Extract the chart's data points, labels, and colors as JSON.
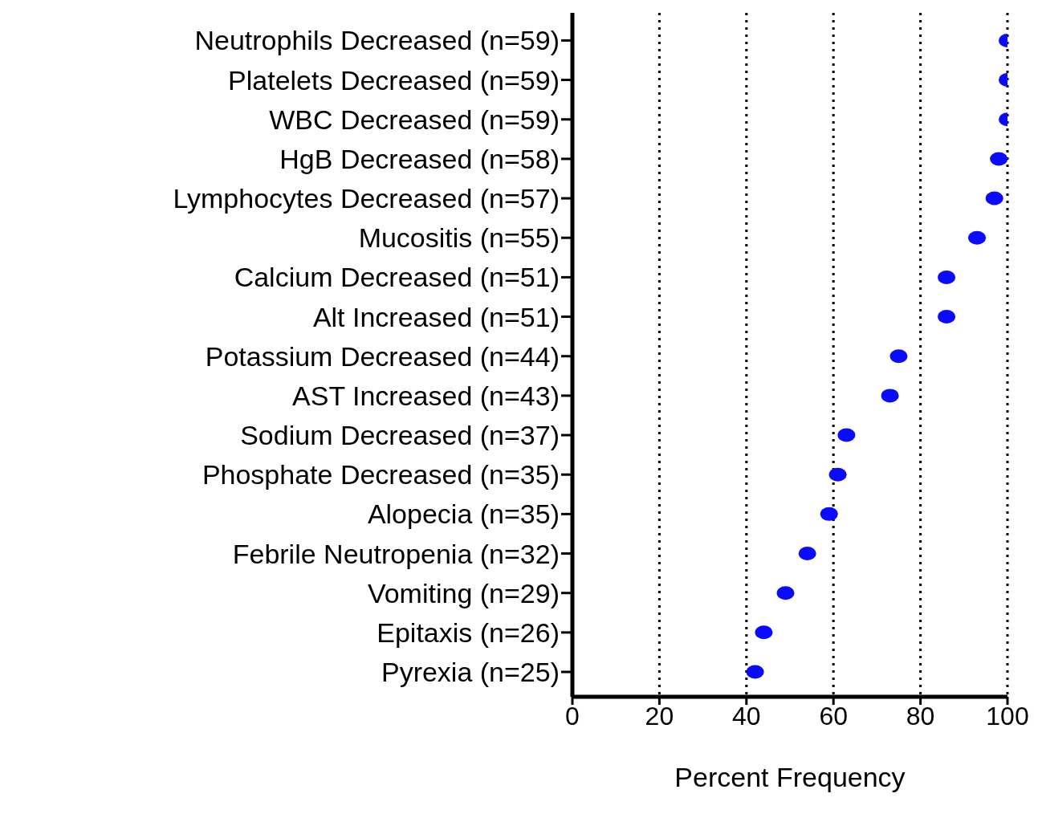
{
  "chart_data": {
    "type": "scatter",
    "orientation": "horizontal",
    "xlabel": "Percent Frequency",
    "categories": [
      "Neutrophils Decreased (n=59)",
      "Platelets Decreased (n=59)",
      "WBC Decreased (n=59)",
      "HgB Decreased (n=58)",
      "Lymphocytes Decreased (n=57)",
      "Mucositis (n=55)",
      "Calcium Decreased (n=51)",
      "Alt Increased (n=51)",
      "Potassium Decreased (n=44)",
      "AST Increased (n=43)",
      "Sodium Decreased (n=37)",
      "Phosphate Decreased (n=35)",
      "Alopecia (n=35)",
      "Febrile Neutropenia (n=32)",
      "Vomiting (n=29)",
      "Epitaxis (n=26)",
      "Pyrexia (n=25)"
    ],
    "values": [
      100,
      100,
      100,
      98,
      97,
      93,
      86,
      86,
      75,
      73,
      63,
      61,
      59,
      54,
      49,
      44,
      42
    ],
    "color": "#0a0aff",
    "marker": "circle",
    "xlim": [
      0,
      100
    ],
    "xticks": [
      0,
      20,
      40,
      60,
      80,
      100
    ],
    "grid": "x"
  }
}
